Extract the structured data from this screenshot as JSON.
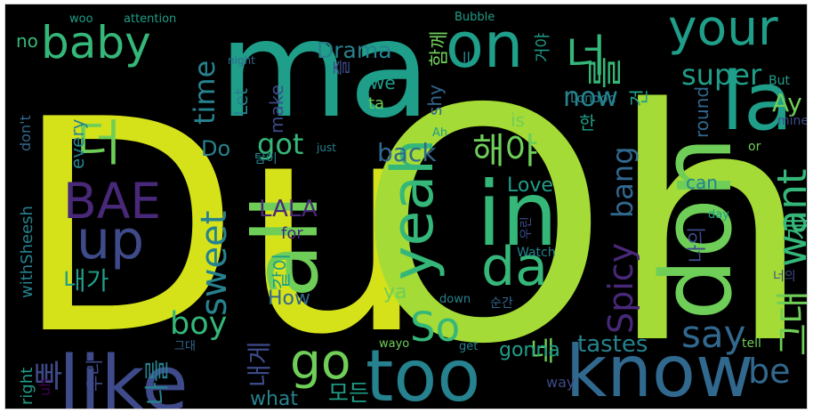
{
  "background": "#000000",
  "palette": {
    "yellow": "#d5e21a",
    "lime": "#a5db36",
    "green": "#6ece58",
    "mint": "#35b779",
    "teal": "#1f9e89",
    "tealblue": "#26828e",
    "blue": "#31688e",
    "indigo": "#3e4a89",
    "purple": "#482878",
    "violet": "#440154"
  },
  "words": [
    {
      "text": "Du",
      "color": "yellow"
    },
    {
      "text": "Oh",
      "color": "lime"
    },
    {
      "text": "ma",
      "color": "teal"
    },
    {
      "text": "know",
      "color": "blue"
    },
    {
      "text": "too",
      "color": "tealblue"
    },
    {
      "text": "like",
      "color": "indigo"
    },
    {
      "text": "don",
      "color": "green"
    },
    {
      "text": "all",
      "color": "green"
    },
    {
      "text": "in",
      "color": "mint"
    },
    {
      "text": "on",
      "color": "teal"
    },
    {
      "text": "la",
      "color": "teal"
    },
    {
      "text": "your",
      "color": "teal"
    },
    {
      "text": "baby",
      "color": "mint"
    },
    {
      "text": "yeah",
      "color": "mint"
    },
    {
      "text": "da",
      "color": "mint"
    },
    {
      "text": "up",
      "color": "indigo"
    },
    {
      "text": "BAE",
      "color": "purple"
    },
    {
      "text": "더",
      "color": "green"
    },
    {
      "text": "너",
      "color": "mint"
    },
    {
      "text": "를",
      "color": "mint"
    },
    {
      "text": "want",
      "color": "mint"
    },
    {
      "text": "sweet",
      "color": "tealblue"
    },
    {
      "text": "go",
      "color": "green"
    },
    {
      "text": "So",
      "color": "mint"
    },
    {
      "text": "say",
      "color": "blue"
    },
    {
      "text": "be",
      "color": "blue"
    },
    {
      "text": "super",
      "color": "teal"
    },
    {
      "text": "해야",
      "color": "green"
    },
    {
      "text": "Spicy",
      "color": "purple"
    },
    {
      "text": "bang",
      "color": "blue"
    },
    {
      "text": "빠",
      "color": "indigo"
    },
    {
      "text": "그대",
      "color": "green"
    },
    {
      "text": "네",
      "color": "green"
    },
    {
      "text": "boy",
      "color": "mint"
    },
    {
      "text": "got",
      "color": "mint"
    },
    {
      "text": "now",
      "color": "tealblue"
    },
    {
      "text": "Drama",
      "color": "tealblue"
    },
    {
      "text": "게",
      "color": "mint"
    },
    {
      "text": "time",
      "color": "tealblue"
    },
    {
      "text": "Love",
      "color": "teal"
    },
    {
      "text": "back",
      "color": "blue"
    },
    {
      "text": "LALA",
      "color": "purple"
    },
    {
      "text": "내가",
      "color": "teal"
    },
    {
      "text": "tastes",
      "color": "tealblue"
    },
    {
      "text": "gonna",
      "color": "teal"
    },
    {
      "text": "모든",
      "color": "teal"
    },
    {
      "text": "나를",
      "color": "tealblue"
    },
    {
      "text": "내게",
      "color": "indigo"
    },
    {
      "text": "what",
      "color": "tealblue"
    },
    {
      "text": "같이",
      "color": "teal"
    },
    {
      "text": "How",
      "color": "blue"
    },
    {
      "text": "Ay",
      "color": "green"
    },
    {
      "text": "is",
      "color": "green"
    },
    {
      "text": "can",
      "color": "tealblue"
    },
    {
      "text": "round",
      "color": "blue"
    },
    {
      "text": "Do",
      "color": "tealblue"
    },
    {
      "text": "every",
      "color": "tealblue"
    },
    {
      "text": "withSheesh",
      "color": "tealblue"
    },
    {
      "text": "right",
      "color": "teal"
    },
    {
      "text": "uh",
      "color": "violet"
    },
    {
      "text": "우리",
      "color": "indigo"
    },
    {
      "text": "ya",
      "color": "green"
    },
    {
      "text": "make",
      "color": "indigo"
    },
    {
      "text": "Let",
      "color": "tealblue"
    },
    {
      "text": "함께",
      "color": "green"
    },
    {
      "text": "거야",
      "color": "teal"
    },
    {
      "text": "한",
      "color": "teal"
    },
    {
      "text": "건",
      "color": "teal"
    },
    {
      "text": "나의",
      "color": "indigo"
    },
    {
      "text": "즐",
      "color": "indigo"
    },
    {
      "text": "we",
      "color": "teal"
    },
    {
      "text": "ta",
      "color": "green"
    },
    {
      "text": "shy",
      "color": "blue"
    },
    {
      "text": "for",
      "color": "purple"
    },
    {
      "text": "no",
      "color": "mint"
    },
    {
      "text": "don't",
      "color": "blue"
    },
    {
      "text": "way",
      "color": "indigo"
    },
    {
      "text": "Watch",
      "color": "tealblue"
    },
    {
      "text": "순간",
      "color": "blue"
    },
    {
      "text": "London",
      "color": "tealblue"
    },
    {
      "text": "mine",
      "color": "indigo"
    },
    {
      "text": "or",
      "color": "green"
    },
    {
      "text": "너의",
      "color": "indigo"
    },
    {
      "text": "tell",
      "color": "green"
    },
    {
      "text": "get",
      "color": "tealblue"
    },
    {
      "text": "wayo",
      "color": "green"
    },
    {
      "text": "그대",
      "color": "blue"
    },
    {
      "text": "down",
      "color": "tealblue"
    },
    {
      "text": "탐이",
      "color": "tealblue"
    },
    {
      "text": "just",
      "color": "tealblue"
    },
    {
      "text": "Ah",
      "color": "teal"
    },
    {
      "text": "우린",
      "color": "indigo"
    },
    {
      "text": "day",
      "color": "teal"
    },
    {
      "text": "But",
      "color": "teal"
    },
    {
      "text": "ll",
      "color": "tealblue"
    },
    {
      "text": "Bubble",
      "color": "teal"
    },
    {
      "text": "woo",
      "color": "teal"
    },
    {
      "text": "attention",
      "color": "teal"
    },
    {
      "text": "night",
      "color": "blue"
    }
  ]
}
